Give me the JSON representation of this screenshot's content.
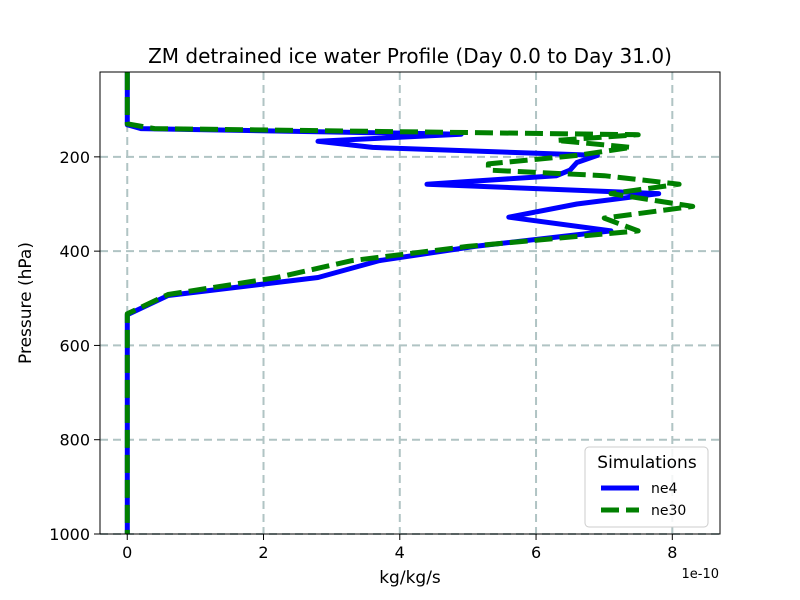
{
  "chart_data": {
    "type": "line",
    "title": "ZM detrained ice water Profile (Day 0.0 to Day 31.0)",
    "xlabel": "kg/kg/s",
    "ylabel": "Pressure (hPa)",
    "x_offset_label": "1e-10",
    "x_scale": 1e-10,
    "xlim": [
      -0.4,
      8.7
    ],
    "ylim": [
      1000,
      20
    ],
    "xticks": [
      0,
      2,
      4,
      6,
      8
    ],
    "yticks": [
      200,
      400,
      600,
      800,
      1000
    ],
    "grid": true,
    "legend": {
      "title": "Simulations",
      "position": "lower-right"
    },
    "series": [
      {
        "name": "ne4",
        "color": "#0000ff",
        "style": "solid",
        "points": [
          [
            0,
            20
          ],
          [
            0,
            60
          ],
          [
            0,
            100
          ],
          [
            0,
            132
          ],
          [
            0.2,
            140
          ],
          [
            4.9,
            152
          ],
          [
            2.8,
            167
          ],
          [
            3.6,
            180
          ],
          [
            6.9,
            197
          ],
          [
            6.6,
            212
          ],
          [
            6.5,
            228
          ],
          [
            6.3,
            240
          ],
          [
            4.4,
            258
          ],
          [
            7.8,
            278
          ],
          [
            6.6,
            300
          ],
          [
            5.6,
            328
          ],
          [
            7.1,
            357
          ],
          [
            5.1,
            390
          ],
          [
            3.7,
            420
          ],
          [
            2.8,
            456
          ],
          [
            0.6,
            494
          ],
          [
            0,
            535
          ],
          [
            0,
            600
          ],
          [
            0,
            700
          ],
          [
            0,
            800
          ],
          [
            0,
            900
          ],
          [
            0,
            1000
          ]
        ]
      },
      {
        "name": "ne30",
        "color": "#008000",
        "style": "dashed",
        "points": [
          [
            0,
            20
          ],
          [
            0,
            60
          ],
          [
            0,
            100
          ],
          [
            0,
            130
          ],
          [
            0.4,
            140
          ],
          [
            7.5,
            153
          ],
          [
            6.3,
            165
          ],
          [
            7.4,
            180
          ],
          [
            6.6,
            197
          ],
          [
            5.3,
            215
          ],
          [
            5.3,
            228
          ],
          [
            7.0,
            240
          ],
          [
            8.1,
            258
          ],
          [
            7.1,
            278
          ],
          [
            8.3,
            305
          ],
          [
            7.0,
            330
          ],
          [
            7.5,
            357
          ],
          [
            5.0,
            390
          ],
          [
            3.3,
            420
          ],
          [
            2.2,
            456
          ],
          [
            0.6,
            492
          ],
          [
            0,
            533
          ],
          [
            0,
            600
          ],
          [
            0,
            700
          ],
          [
            0,
            800
          ],
          [
            0,
            900
          ],
          [
            0,
            1000
          ]
        ]
      }
    ]
  }
}
